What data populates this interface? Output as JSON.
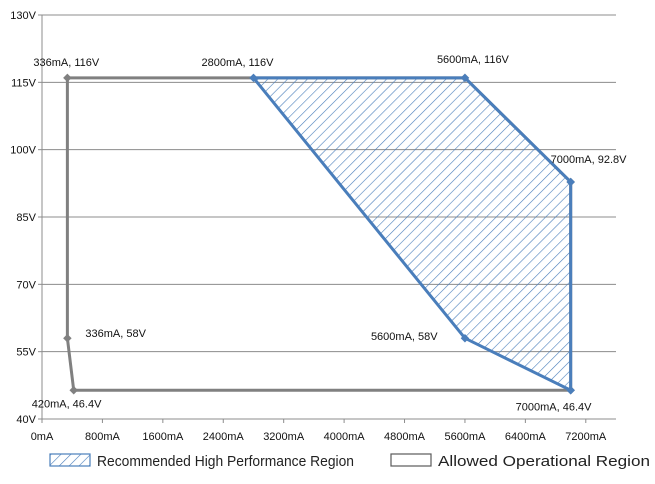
{
  "chart_data": {
    "type": "area",
    "xlim": [
      0,
      7600
    ],
    "ylim": [
      40,
      130
    ],
    "x_ticks": [
      0,
      800,
      1600,
      2400,
      3200,
      4000,
      4800,
      5600,
      6400,
      7200
    ],
    "x_tick_labels": [
      "0mA",
      "800mA",
      "1600mA",
      "2400mA",
      "3200mA",
      "4000mA",
      "4800mA",
      "5600mA",
      "6400mA",
      "7200mA"
    ],
    "y_ticks": [
      40,
      55,
      70,
      85,
      100,
      115,
      130
    ],
    "y_tick_labels": [
      "40V",
      "55V",
      "70V",
      "85V",
      "100V",
      "115V",
      "130V"
    ],
    "grid": {
      "horizontal": true,
      "vertical": false
    },
    "legend_position": "bottom",
    "series": [
      {
        "name": "Recommended High Performance Region",
        "style": "hatched",
        "color": "#4a7ebb",
        "points": [
          {
            "x": 2800,
            "y": 116,
            "label": "2800mA, 116V"
          },
          {
            "x": 5600,
            "y": 116,
            "label": "5600mA, 116V"
          },
          {
            "x": 7000,
            "y": 92.8,
            "label": "7000mA, 92.8V"
          },
          {
            "x": 7000,
            "y": 46.4,
            "label": "7000mA, 46.4V"
          },
          {
            "x": 5600,
            "y": 58,
            "label": "5600mA, 58V"
          }
        ]
      },
      {
        "name": "Allowed Operational Region",
        "style": "outline",
        "color": "#808080",
        "points": [
          {
            "x": 336,
            "y": 116,
            "label": "336mA, 116V"
          },
          {
            "x": 336,
            "y": 58,
            "label": "336mA, 58V"
          },
          {
            "x": 420,
            "y": 46.4,
            "label": "420mA, 46.4V"
          },
          {
            "x": 7000,
            "y": 46.4,
            "label": ""
          },
          {
            "x": 7000,
            "y": 92.8,
            "label": ""
          },
          {
            "x": 5600,
            "y": 116,
            "label": ""
          }
        ]
      }
    ]
  }
}
